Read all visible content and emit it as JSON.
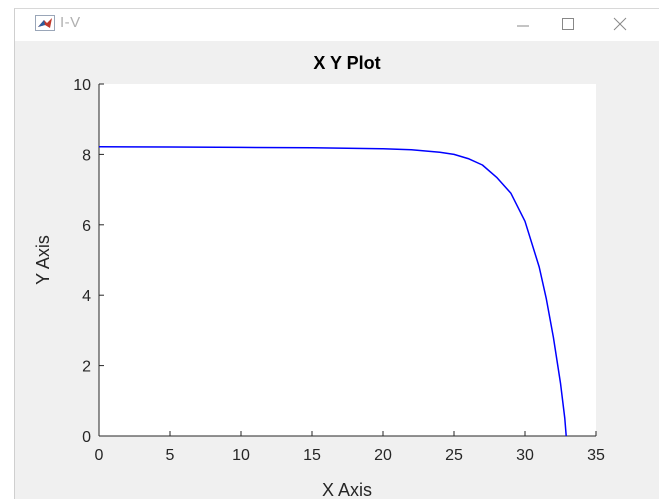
{
  "window": {
    "title": "I-V",
    "icon": "matlab-logo-icon",
    "controls": [
      "minimize-icon",
      "maximize-icon",
      "close-icon"
    ]
  },
  "chart_data": {
    "type": "line",
    "title": "X Y Plot",
    "xlabel": "X Axis",
    "ylabel": "Y Axis",
    "xlim": [
      0,
      35
    ],
    "ylim": [
      0,
      10
    ],
    "xticks": [
      0,
      5,
      10,
      15,
      20,
      25,
      30,
      35
    ],
    "yticks": [
      0,
      2,
      4,
      6,
      8,
      10
    ],
    "grid": false,
    "series": [
      {
        "color": "#0000ff",
        "x": [
          0,
          5,
          10,
          15,
          20,
          22,
          24,
          25,
          26,
          27,
          28,
          29,
          30,
          31,
          31.5,
          32,
          32.5,
          32.8,
          32.9
        ],
        "y": [
          8.22,
          8.21,
          8.2,
          8.19,
          8.16,
          8.13,
          8.06,
          8.0,
          7.88,
          7.7,
          7.35,
          6.9,
          6.1,
          4.8,
          3.9,
          2.8,
          1.5,
          0.5,
          0.0
        ]
      }
    ]
  }
}
